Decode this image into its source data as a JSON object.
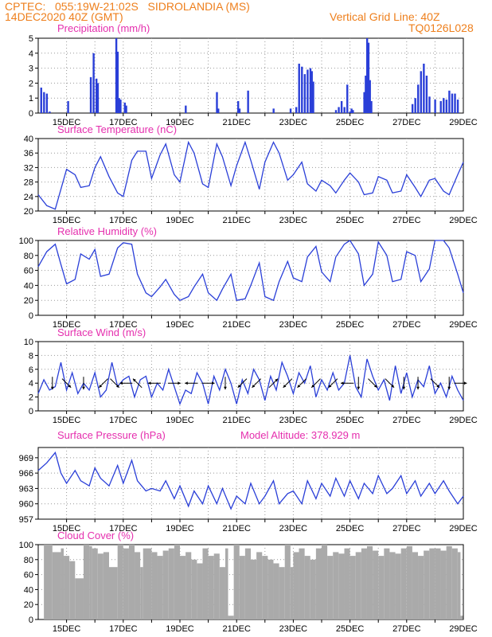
{
  "header": {
    "line1": "CPTEC:   055:19W-21:02S   SIDROLANDIA (MS)",
    "line2": "14DEC2020 40Z (GMT)",
    "right1": "Vertical Grid Line: 40Z",
    "right2": "TQ0126L028"
  },
  "colors": {
    "header": "#ee7f1c",
    "title": "#e52fae",
    "series": "#2a3fd8",
    "cloud": "#aaaaaa",
    "grid": "#999999"
  },
  "chart_data": [
    {
      "id": "precip",
      "type": "bar",
      "title": "Precipitation (mm/h)",
      "x_unit": "day of December 2020",
      "ylim": [
        0,
        5
      ],
      "yticks": [
        0,
        1,
        2,
        3,
        4,
        5
      ],
      "xlim": [
        14.0,
        29.0
      ],
      "xticks": [
        "15DEC",
        "17DEC",
        "19DEC",
        "21DEC",
        "23DEC",
        "25DEC",
        "27DEC",
        "29DEC"
      ],
      "x": [
        14.1,
        14.2,
        14.3,
        14.4,
        15.05,
        15.85,
        15.95,
        16.05,
        16.1,
        16.75,
        16.8,
        16.85,
        16.9,
        17.05,
        17.1,
        19.2,
        20.3,
        20.35,
        21.05,
        21.1,
        21.4,
        22.3,
        22.9,
        23.1,
        23.2,
        23.3,
        23.4,
        23.5,
        23.6,
        23.65,
        23.7,
        24.5,
        24.6,
        24.7,
        24.8,
        24.9,
        25.0,
        25.05,
        25.1,
        25.5,
        25.55,
        25.6,
        25.65,
        25.7,
        25.75,
        27.2,
        27.3,
        27.4,
        27.5,
        27.6,
        27.7,
        27.8,
        28.0,
        28.2,
        28.3,
        28.4,
        28.5,
        28.6,
        28.7,
        28.8
      ],
      "values": [
        1.7,
        1.4,
        1.3,
        0.1,
        0.8,
        2.4,
        4.0,
        2.3,
        2.0,
        5.0,
        4.1,
        1.0,
        0.9,
        0.7,
        0.5,
        0.5,
        1.4,
        0.3,
        0.8,
        0.3,
        1.5,
        0.3,
        0.3,
        0.4,
        3.3,
        3.1,
        2.6,
        2.9,
        3.0,
        2.8,
        2.1,
        0.2,
        0.4,
        0.8,
        0.4,
        1.9,
        0.1,
        0.3,
        0.2,
        1.4,
        2.5,
        5.0,
        4.7,
        2.2,
        0.8,
        0.6,
        1.0,
        1.9,
        2.8,
        3.3,
        2.5,
        1.1,
        0.9,
        0.8,
        1.0,
        0.9,
        1.5,
        1.3,
        1.3,
        0.9
      ]
    },
    {
      "id": "temp",
      "type": "line",
      "title": "Surface Temperature (nC)",
      "ylim": [
        20,
        40
      ],
      "yticks": [
        20,
        24,
        28,
        32,
        36,
        40
      ],
      "xlim": [
        14.0,
        29.0
      ],
      "xticks": [
        "15DEC",
        "17DEC",
        "19DEC",
        "21DEC",
        "23DEC",
        "25DEC",
        "27DEC",
        "29DEC"
      ],
      "x": [
        14.0,
        14.3,
        14.6,
        14.8,
        15.0,
        15.3,
        15.5,
        15.8,
        16.0,
        16.2,
        16.5,
        16.8,
        17.0,
        17.3,
        17.5,
        17.8,
        18.0,
        18.3,
        18.5,
        18.8,
        19.0,
        19.3,
        19.5,
        19.8,
        20.0,
        20.3,
        20.5,
        20.8,
        21.0,
        21.3,
        21.5,
        21.8,
        22.0,
        22.3,
        22.5,
        22.8,
        23.0,
        23.3,
        23.5,
        23.8,
        24.0,
        24.3,
        24.5,
        24.8,
        25.0,
        25.3,
        25.5,
        25.8,
        26.0,
        26.3,
        26.5,
        26.8,
        27.0,
        27.3,
        27.5,
        27.8,
        28.0,
        28.3,
        28.5,
        28.8,
        29.0
      ],
      "values": [
        24.5,
        21.5,
        20.5,
        26.0,
        31.5,
        30.0,
        26.5,
        27.0,
        32.0,
        35.0,
        29.5,
        25.0,
        24.0,
        34.0,
        36.5,
        36.5,
        29.0,
        35.5,
        38.5,
        30.0,
        28.0,
        39.0,
        36.0,
        27.5,
        26.5,
        38.5,
        35.0,
        27.0,
        32.5,
        39.0,
        34.0,
        26.0,
        33.5,
        39.0,
        36.0,
        28.5,
        30.0,
        33.5,
        27.5,
        25.5,
        28.5,
        27.0,
        25.0,
        28.5,
        30.5,
        28.0,
        24.5,
        25.0,
        29.5,
        28.5,
        25.0,
        25.5,
        30.0,
        26.5,
        24.0,
        28.5,
        29.0,
        25.5,
        24.5,
        30.0,
        33.5
      ]
    },
    {
      "id": "rh",
      "type": "line",
      "title": "Relative Humidity (%)",
      "ylim": [
        0,
        100
      ],
      "yticks": [
        0,
        20,
        40,
        60,
        80,
        100
      ],
      "xlim": [
        14.0,
        29.0
      ],
      "xticks": [
        "15DEC",
        "17DEC",
        "19DEC",
        "21DEC",
        "23DEC",
        "25DEC",
        "27DEC",
        "29DEC"
      ],
      "x": [
        14.0,
        14.3,
        14.6,
        14.8,
        15.0,
        15.3,
        15.5,
        15.8,
        16.0,
        16.2,
        16.5,
        16.8,
        17.0,
        17.3,
        17.5,
        17.8,
        18.0,
        18.3,
        18.5,
        18.8,
        19.0,
        19.3,
        19.5,
        19.8,
        20.0,
        20.3,
        20.5,
        20.8,
        21.0,
        21.3,
        21.5,
        21.8,
        22.0,
        22.3,
        22.5,
        22.8,
        23.0,
        23.3,
        23.5,
        23.8,
        24.0,
        24.3,
        24.5,
        24.8,
        25.0,
        25.3,
        25.5,
        25.8,
        26.0,
        26.3,
        26.5,
        26.8,
        27.0,
        27.3,
        27.5,
        27.8,
        28.0,
        28.3,
        28.5,
        28.8,
        29.0
      ],
      "values": [
        65,
        85,
        95,
        68,
        42,
        48,
        82,
        75,
        88,
        52,
        55,
        90,
        97,
        95,
        55,
        30,
        25,
        38,
        48,
        28,
        20,
        25,
        38,
        55,
        30,
        20,
        35,
        55,
        20,
        22,
        40,
        70,
        25,
        20,
        45,
        72,
        50,
        45,
        78,
        92,
        58,
        45,
        78,
        95,
        100,
        82,
        40,
        55,
        98,
        80,
        45,
        48,
        85,
        80,
        45,
        62,
        100,
        100,
        90,
        55,
        30
      ]
    },
    {
      "id": "wind",
      "type": "line",
      "title": "Surface Wind (m/s)",
      "ylim": [
        0,
        10
      ],
      "yticks": [
        0,
        2,
        4,
        6,
        8,
        10
      ],
      "xlim": [
        14.0,
        29.0
      ],
      "xticks": [
        "15DEC",
        "17DEC",
        "19DEC",
        "21DEC",
        "23DEC",
        "25DEC",
        "27DEC",
        "29DEC"
      ],
      "x": [
        14.0,
        14.2,
        14.4,
        14.6,
        14.8,
        15.0,
        15.2,
        15.4,
        15.6,
        15.8,
        16.0,
        16.2,
        16.4,
        16.6,
        16.8,
        17.0,
        17.2,
        17.4,
        17.6,
        17.8,
        18.0,
        18.2,
        18.4,
        18.6,
        18.8,
        19.0,
        19.2,
        19.4,
        19.6,
        19.8,
        20.0,
        20.2,
        20.4,
        20.6,
        20.8,
        21.0,
        21.2,
        21.4,
        21.6,
        21.8,
        22.0,
        22.2,
        22.4,
        22.6,
        22.8,
        23.0,
        23.2,
        23.4,
        23.6,
        23.8,
        24.0,
        24.2,
        24.4,
        24.6,
        24.8,
        25.0,
        25.2,
        25.4,
        25.6,
        25.8,
        26.0,
        26.2,
        26.4,
        26.6,
        26.8,
        27.0,
        27.2,
        27.4,
        27.6,
        27.8,
        28.0,
        28.2,
        28.4,
        28.6,
        28.8,
        29.0
      ],
      "values": [
        2.5,
        4.5,
        3.0,
        3.5,
        7.0,
        3.0,
        5.5,
        2.5,
        4.0,
        3.0,
        5.5,
        2.0,
        3.0,
        7.0,
        3.5,
        4.5,
        5.0,
        2.0,
        4.5,
        5.0,
        2.0,
        4.0,
        3.0,
        6.0,
        3.5,
        1.0,
        3.0,
        2.5,
        5.5,
        4.0,
        1.0,
        5.0,
        3.0,
        6.0,
        4.0,
        1.0,
        4.5,
        2.5,
        6.0,
        4.5,
        1.5,
        5.0,
        3.0,
        7.0,
        5.0,
        2.5,
        5.5,
        4.0,
        6.5,
        2.0,
        4.5,
        3.0,
        5.5,
        3.0,
        4.0,
        8.0,
        3.5,
        2.0,
        7.5,
        5.0,
        3.0,
        4.5,
        1.5,
        6.5,
        2.5,
        5.5,
        2.0,
        4.5,
        3.5,
        6.5,
        2.5,
        4.0,
        2.0,
        5.0,
        3.0,
        1.5
      ],
      "arrows": [
        {
          "x": 14.5,
          "dir": "S"
        },
        {
          "x": 15.0,
          "dir": "SE"
        },
        {
          "x": 15.6,
          "dir": "S"
        },
        {
          "x": 16.3,
          "dir": "SW"
        },
        {
          "x": 16.7,
          "dir": "SE"
        },
        {
          "x": 17.1,
          "dir": "W"
        },
        {
          "x": 17.5,
          "dir": "NW"
        },
        {
          "x": 18.1,
          "dir": "W"
        },
        {
          "x": 18.8,
          "dir": "E"
        },
        {
          "x": 19.4,
          "dir": "W"
        },
        {
          "x": 20.0,
          "dir": "E"
        },
        {
          "x": 20.6,
          "dir": "S"
        },
        {
          "x": 21.2,
          "dir": "SW"
        },
        {
          "x": 21.7,
          "dir": "SW"
        },
        {
          "x": 22.3,
          "dir": "NE"
        },
        {
          "x": 22.8,
          "dir": "SW"
        },
        {
          "x": 23.3,
          "dir": "SW"
        },
        {
          "x": 23.8,
          "dir": "SW"
        },
        {
          "x": 24.4,
          "dir": "SW"
        },
        {
          "x": 24.9,
          "dir": "W"
        },
        {
          "x": 25.3,
          "dir": "S"
        },
        {
          "x": 25.8,
          "dir": "SE"
        },
        {
          "x": 26.4,
          "dir": "SE"
        },
        {
          "x": 26.9,
          "dir": "S"
        },
        {
          "x": 27.4,
          "dir": "S"
        },
        {
          "x": 28.0,
          "dir": "SE"
        },
        {
          "x": 28.5,
          "dir": "S"
        },
        {
          "x": 28.9,
          "dir": "E"
        }
      ]
    },
    {
      "id": "pres",
      "type": "line",
      "title": "Surface Pressure (hPa)",
      "subtitle": "Model Altitude: 378.929  m",
      "ylim": [
        957,
        971
      ],
      "yticks": [
        957,
        960,
        963,
        966,
        969
      ],
      "xlim": [
        14.0,
        29.0
      ],
      "xticks": [
        "15DEC",
        "17DEC",
        "19DEC",
        "21DEC",
        "23DEC",
        "25DEC",
        "27DEC",
        "29DEC"
      ],
      "x": [
        14.0,
        14.3,
        14.6,
        14.8,
        15.0,
        15.3,
        15.5,
        15.8,
        16.0,
        16.2,
        16.5,
        16.8,
        17.0,
        17.3,
        17.5,
        17.8,
        18.0,
        18.3,
        18.5,
        18.8,
        19.0,
        19.3,
        19.5,
        19.8,
        20.0,
        20.3,
        20.5,
        20.8,
        21.0,
        21.3,
        21.5,
        21.8,
        22.0,
        22.3,
        22.5,
        22.8,
        23.0,
        23.3,
        23.5,
        23.8,
        24.0,
        24.3,
        24.5,
        24.8,
        25.0,
        25.3,
        25.5,
        25.8,
        26.0,
        26.3,
        26.5,
        26.8,
        27.0,
        27.3,
        27.5,
        27.8,
        28.0,
        28.3,
        28.5,
        28.8,
        29.0
      ],
      "values": [
        966.5,
        968.0,
        970.0,
        966.0,
        964.0,
        966.5,
        964.5,
        963.5,
        967.0,
        965.0,
        963.5,
        967.5,
        964.0,
        968.5,
        964.5,
        962.5,
        963.0,
        962.5,
        964.5,
        961.0,
        963.5,
        959.5,
        962.5,
        960.0,
        963.5,
        960.0,
        963.0,
        959.0,
        961.5,
        960.0,
        964.0,
        960.0,
        961.5,
        964.5,
        960.0,
        962.0,
        962.5,
        960.0,
        964.5,
        961.0,
        964.0,
        961.5,
        965.0,
        961.5,
        964.5,
        961.0,
        964.0,
        962.0,
        965.5,
        962.0,
        963.0,
        965.5,
        962.0,
        964.5,
        961.5,
        964.0,
        962.0,
        964.5,
        962.5,
        960.0,
        961.5
      ]
    },
    {
      "id": "cloud",
      "type": "area",
      "title": "Cloud Cover (%)",
      "ylim": [
        0,
        100
      ],
      "yticks": [
        0,
        20,
        40,
        60,
        80,
        100
      ],
      "xlim": [
        14.0,
        29.0
      ],
      "xticks": [
        "15DEC",
        "17DEC",
        "19DEC",
        "21DEC",
        "23DEC",
        "25DEC",
        "27DEC",
        "29DEC"
      ],
      "x": [
        14.2,
        14.5,
        14.8,
        14.9,
        15.1,
        15.3,
        15.6,
        15.8,
        15.9,
        16.1,
        16.3,
        16.5,
        16.8,
        17.0,
        17.2,
        17.4,
        17.6,
        17.7,
        18.0,
        18.2,
        18.4,
        18.6,
        18.8,
        19.0,
        19.2,
        19.4,
        19.6,
        19.8,
        20.0,
        20.2,
        20.4,
        20.6,
        20.7,
        20.9,
        21.1,
        21.3,
        21.5,
        21.7,
        21.9,
        22.1,
        22.3,
        22.5,
        22.7,
        22.9,
        23.0,
        23.2,
        23.4,
        23.6,
        23.8,
        24.0,
        24.2,
        24.4,
        24.6,
        24.8,
        25.0,
        25.2,
        25.4,
        25.6,
        25.8,
        26.0,
        26.2,
        26.4,
        26.6,
        26.8,
        27.0,
        27.2,
        27.4,
        27.6,
        27.8,
        28.0,
        28.2,
        28.4,
        28.6,
        28.8,
        28.9
      ],
      "values": [
        100,
        90,
        95,
        85,
        78,
        55,
        100,
        98,
        95,
        88,
        90,
        70,
        100,
        95,
        100,
        90,
        70,
        95,
        90,
        85,
        92,
        95,
        100,
        85,
        90,
        80,
        75,
        95,
        85,
        88,
        70,
        95,
        5,
        100,
        85,
        95,
        80,
        90,
        85,
        80,
        75,
        70,
        100,
        70,
        90,
        95,
        85,
        80,
        95,
        100,
        85,
        90,
        88,
        95,
        85,
        90,
        95,
        98,
        92,
        85,
        95,
        90,
        88,
        95,
        98,
        90,
        85,
        92,
        95,
        95,
        92,
        98,
        95,
        90,
        5
      ]
    }
  ]
}
